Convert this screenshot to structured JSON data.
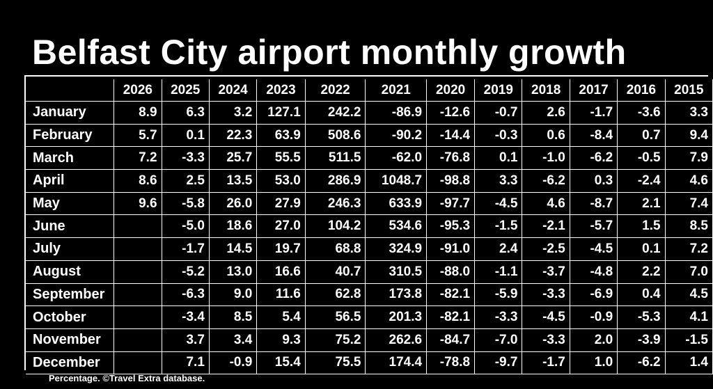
{
  "title": "Belfast City airport monthly growth",
  "footer": "Percentage. ©Travel Extra database.",
  "chart_data": {
    "type": "table",
    "title": "Belfast City airport monthly growth",
    "columns": [
      "2026",
      "2025",
      "2024",
      "2023",
      "2022",
      "2021",
      "2020",
      "2019",
      "2018",
      "2017",
      "2016",
      "2015"
    ],
    "rows": [
      {
        "month": "January",
        "values": [
          "8.9",
          "6.3",
          "3.2",
          "127.1",
          "242.2",
          "-86.9",
          "-12.6",
          "-0.7",
          "2.6",
          "-1.7",
          "-3.6",
          "3.3"
        ]
      },
      {
        "month": "February",
        "values": [
          "5.7",
          "0.1",
          "22.3",
          "63.9",
          "508.6",
          "-90.2",
          "-14.4",
          "-0.3",
          "0.6",
          "-8.4",
          "0.7",
          "9.4"
        ]
      },
      {
        "month": "March",
        "values": [
          "7.2",
          "-3.3",
          "25.7",
          "55.5",
          "511.5",
          "-62.0",
          "-76.8",
          "0.1",
          "-1.0",
          "-6.2",
          "-0.5",
          "7.9"
        ]
      },
      {
        "month": "April",
        "values": [
          "8.6",
          "2.5",
          "13.5",
          "53.0",
          "286.9",
          "1048.7",
          "-98.8",
          "3.3",
          "-6.2",
          "0.3",
          "-2.4",
          "4.6"
        ]
      },
      {
        "month": "May",
        "values": [
          "9.6",
          "-5.8",
          "26.0",
          "27.9",
          "246.3",
          "633.9",
          "-97.7",
          "-4.5",
          "4.6",
          "-8.7",
          "2.1",
          "7.4"
        ]
      },
      {
        "month": "June",
        "values": [
          "",
          "-5.0",
          "18.6",
          "27.0",
          "104.2",
          "534.6",
          "-95.3",
          "-1.5",
          "-2.1",
          "-5.7",
          "1.5",
          "8.5"
        ]
      },
      {
        "month": "July",
        "values": [
          "",
          "-1.7",
          "14.5",
          "19.7",
          "68.8",
          "324.9",
          "-91.0",
          "2.4",
          "-2.5",
          "-4.5",
          "0.1",
          "7.2"
        ]
      },
      {
        "month": "August",
        "values": [
          "",
          "-5.2",
          "13.0",
          "16.6",
          "40.7",
          "310.5",
          "-88.0",
          "-1.1",
          "-3.7",
          "-4.8",
          "2.2",
          "7.0"
        ]
      },
      {
        "month": "September",
        "values": [
          "",
          "-6.3",
          "9.0",
          "11.6",
          "62.8",
          "173.8",
          "-82.1",
          "-5.9",
          "-3.3",
          "-6.9",
          "0.4",
          "4.5"
        ]
      },
      {
        "month": "October",
        "values": [
          "",
          "-3.4",
          "8.5",
          "5.4",
          "56.5",
          "201.3",
          "-82.1",
          "-3.3",
          "-4.5",
          "-0.9",
          "-5.3",
          "4.1"
        ]
      },
      {
        "month": "November",
        "values": [
          "",
          "3.7",
          "3.4",
          "9.3",
          "75.2",
          "262.6",
          "-84.7",
          "-7.0",
          "-3.3",
          "2.0",
          "-3.9",
          "-1.5"
        ]
      },
      {
        "month": "December",
        "values": [
          "",
          "7.1",
          "-0.9",
          "15.4",
          "75.5",
          "174.4",
          "-78.8",
          "-9.7",
          "-1.7",
          "1.0",
          "-6.2",
          "1.4"
        ]
      }
    ]
  }
}
